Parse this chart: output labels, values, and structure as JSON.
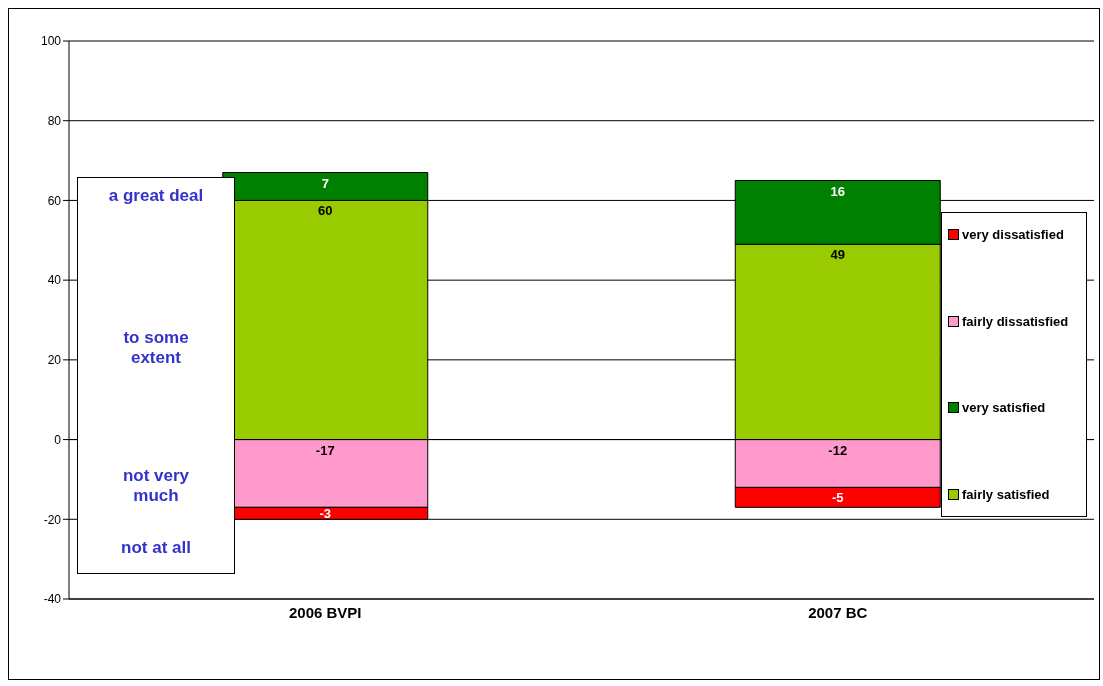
{
  "chart_data": {
    "type": "bar",
    "stacked": true,
    "categories": [
      "2006 BVPI",
      "2007 BC"
    ],
    "series": [
      {
        "name": "fairly satisfied",
        "color": "#99cc00",
        "values": [
          60,
          49
        ]
      },
      {
        "name": "very satisfied",
        "color": "#008000",
        "values": [
          7,
          16
        ]
      },
      {
        "name": "fairly dissatisfied",
        "color": "#ff99cc",
        "values": [
          -17,
          -12
        ]
      },
      {
        "name": "very dissatisfied",
        "color": "#ff0000",
        "values": [
          -3,
          -5
        ]
      }
    ],
    "ylim": [
      -40,
      100
    ],
    "yticks": [
      -40,
      -20,
      0,
      20,
      40,
      60,
      80,
      100
    ],
    "grid": "y",
    "legend": "right",
    "data_labels": true,
    "annotations": [
      "a great deal",
      "to some extent",
      "not very much",
      "not at all"
    ]
  }
}
